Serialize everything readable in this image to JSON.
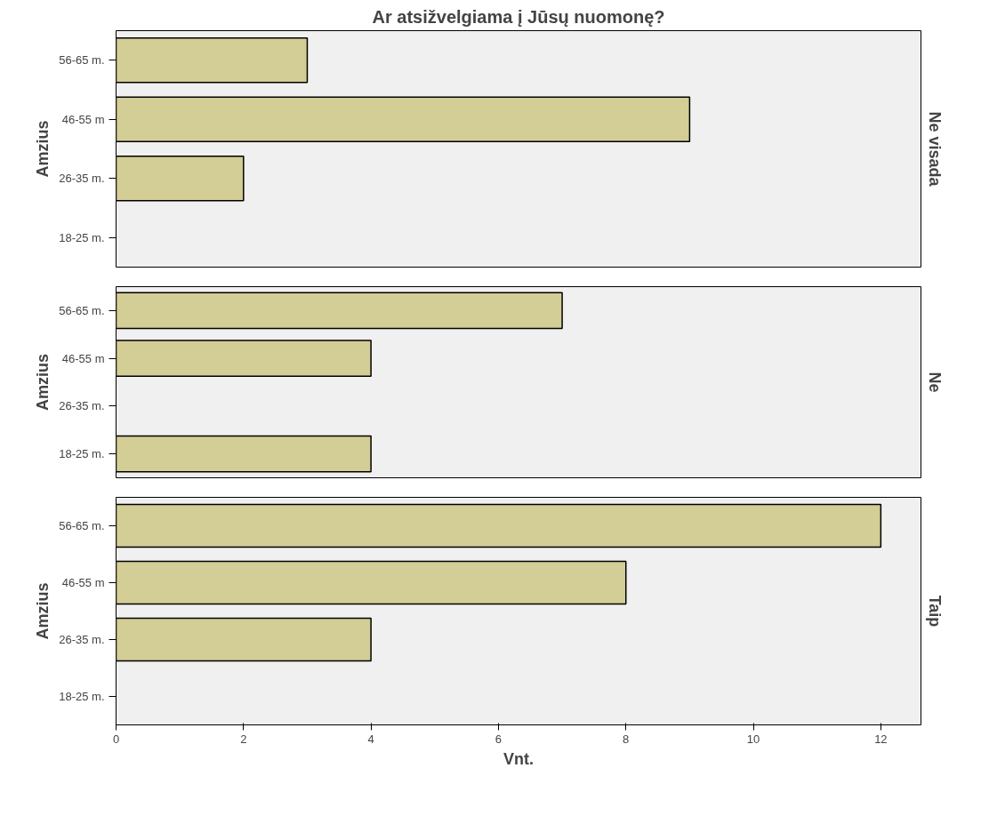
{
  "chart_data": [
    {
      "type": "bar",
      "orientation": "horizontal",
      "title": "Ar atsižvelgiama į Jūsų nuomonę?",
      "ylabel": "Amzius",
      "y2label": "Ne visada",
      "categories": [
        "56-65 m.",
        "46-55 m",
        "26-35 m.",
        "18-25 m."
      ],
      "values": [
        3,
        9,
        2,
        null
      ],
      "color": "#d3cd96",
      "xlim": [
        0,
        12.63
      ],
      "xticks": [
        0,
        2,
        4,
        6,
        8,
        10,
        12
      ],
      "tick_labels": "y",
      "grid": false
    },
    {
      "type": "bar",
      "orientation": "horizontal",
      "ylabel": "Amzius",
      "y2label": "Ne",
      "categories": [
        "56-65 m.",
        "46-55 m",
        "26-35 m.",
        "18-25 m."
      ],
      "values": [
        7,
        4,
        null,
        4
      ],
      "color": "#d3cd96",
      "xlim": [
        0,
        12.63
      ],
      "xticks": [
        0,
        2,
        4,
        6,
        8,
        10,
        12
      ],
      "tick_labels": "y",
      "grid": false
    },
    {
      "type": "bar",
      "orientation": "horizontal",
      "xlabel": "Vnt.",
      "ylabel": "Amzius",
      "y2label": "Taip",
      "categories": [
        "56-65 m.",
        "46-55 m",
        "26-35 m.",
        "18-25 m."
      ],
      "values": [
        12,
        8,
        4,
        null
      ],
      "color": "#d3cd96",
      "xlim": [
        0,
        12.63
      ],
      "xticks": [
        0,
        2,
        4,
        6,
        8,
        10,
        12
      ],
      "grid": false
    }
  ]
}
